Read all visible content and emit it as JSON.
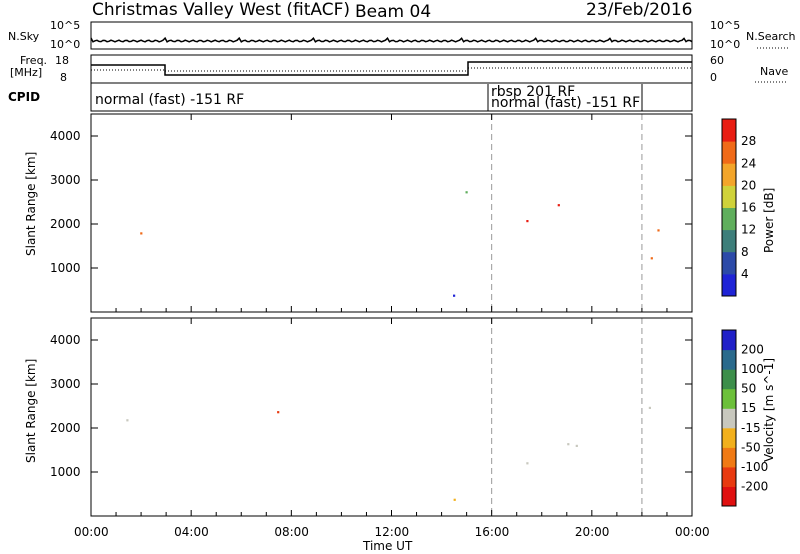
{
  "header": {
    "title": "Christmas Valley West (fitACF)",
    "beam": "Beam 04",
    "date": "23/Feb/2016"
  },
  "top_panels": {
    "nsky_label": "N.Sky",
    "nsky_ticks": [
      "10^5",
      "10^0"
    ],
    "nsearch_label": "N.Search",
    "nsearch_ticks": [
      "10^5",
      "10^0"
    ],
    "freq_label_1": "Freq.",
    "freq_label_2": "[MHz]",
    "freq_ticks": [
      "18",
      "8"
    ],
    "nave_label": "Nave",
    "nave_ticks": [
      "60",
      "0"
    ],
    "cpid_label": "CPID",
    "cpid_entries": [
      "normal (fast) -151 RF",
      "rbsp 201 RF",
      "normal (fast) -151 RF"
    ]
  },
  "chart_data": [
    {
      "type": "heatmap",
      "name": "power-panel",
      "ylabel": "Slant Range [km]",
      "xlabel": "",
      "yticks": [
        "1000",
        "2000",
        "3000",
        "4000"
      ],
      "colorbar_label": "Power [dB]",
      "colorbar_ticks": [
        "4",
        "8",
        "12",
        "16",
        "20",
        "24",
        "28"
      ],
      "colorbar_colors": [
        "#1f24d6",
        "#2c4aa8",
        "#3d7e7a",
        "#5fae5c",
        "#cfd23a",
        "#f3a52a",
        "#f06a18",
        "#e81d12"
      ],
      "ylim": [
        0,
        4500
      ],
      "xlim_hours": [
        0,
        24
      ]
    },
    {
      "type": "heatmap",
      "name": "velocity-panel",
      "ylabel": "Slant Range [km]",
      "xlabel": "Time UT",
      "yticks": [
        "1000",
        "2000",
        "3000",
        "4000"
      ],
      "xticks": [
        "00:00",
        "04:00",
        "08:00",
        "12:00",
        "16:00",
        "20:00",
        "00:00"
      ],
      "colorbar_label": "Velocity [m s^-1]",
      "colorbar_ticks": [
        "200",
        "100",
        "50",
        "15",
        "-15",
        "-50",
        "-100",
        "-200"
      ],
      "colorbar_colors": [
        "#2020c8",
        "#2a6a8c",
        "#3c8e4a",
        "#6cc03a",
        "#c8c8be",
        "#f2b01c",
        "#f07a14",
        "#e83a10",
        "#e01010"
      ],
      "ylim": [
        0,
        4500
      ],
      "xlim_hours": [
        0,
        24
      ]
    }
  ]
}
